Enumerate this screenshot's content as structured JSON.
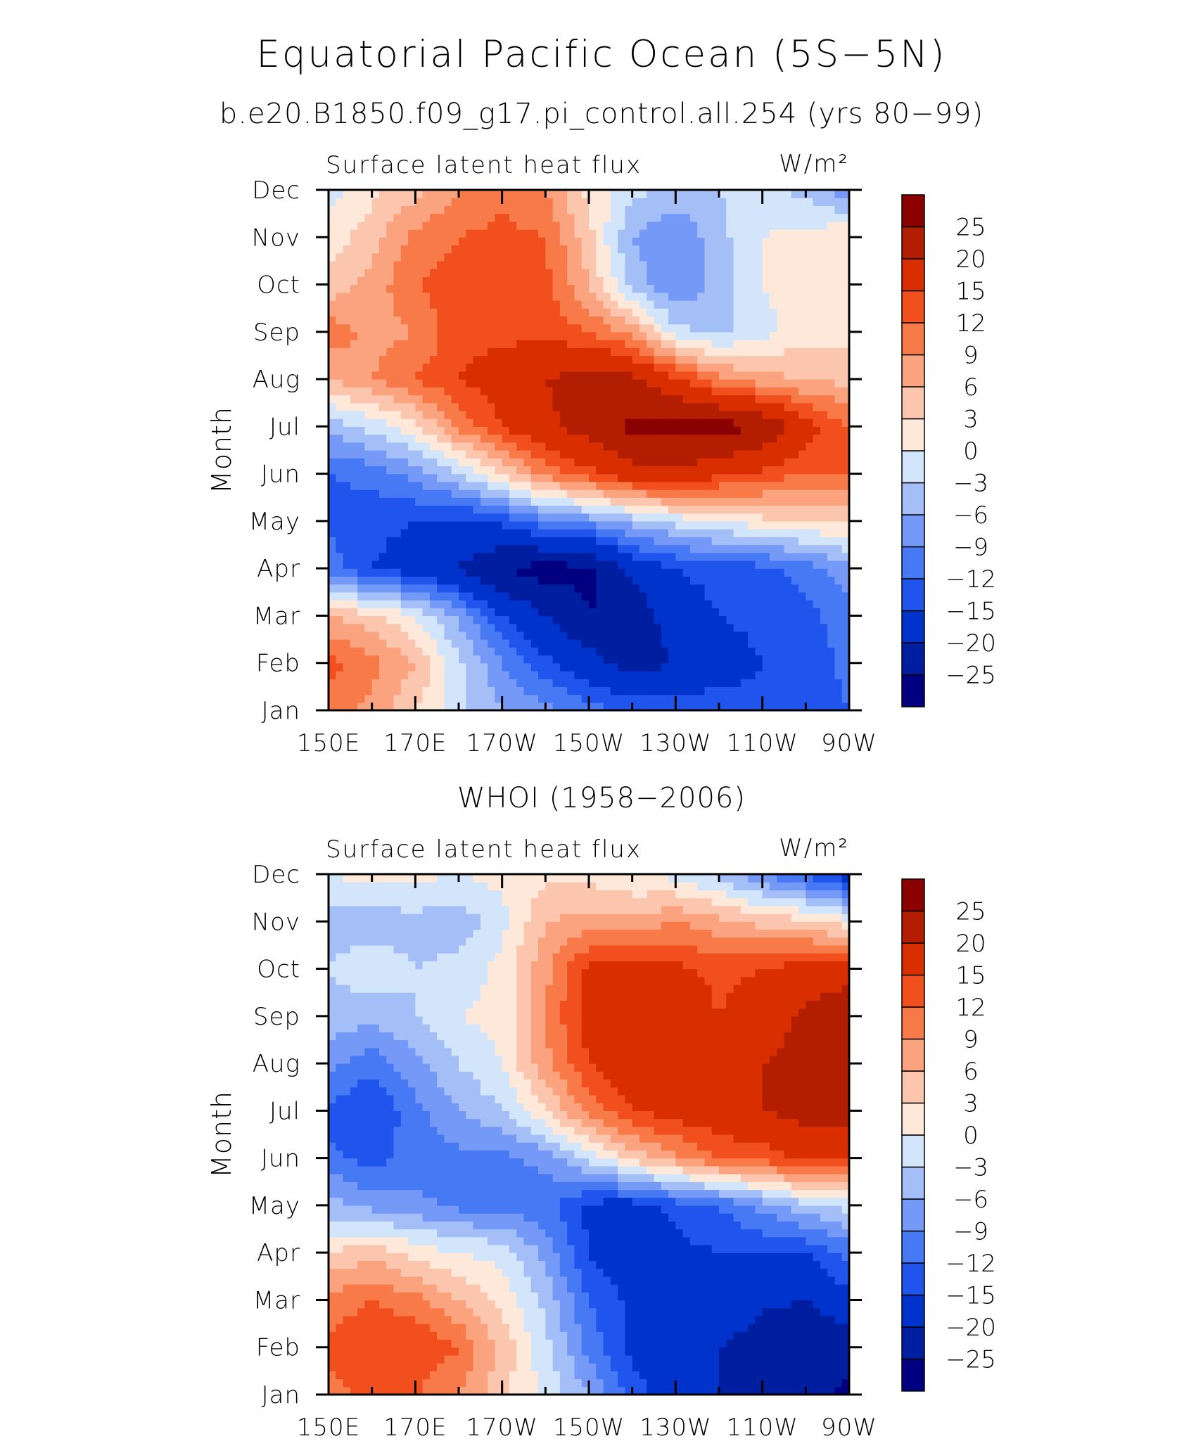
{
  "title": "Equatorial Pacific Ocean (5S−5N)",
  "levels": [
    -25,
    -20,
    -15,
    -12,
    -9,
    -6,
    -3,
    0,
    3,
    6,
    9,
    12,
    15,
    20,
    25
  ],
  "colorbar_colors": [
    "#000080",
    "#001ea0",
    "#0033cc",
    "#1f55ec",
    "#4779f5",
    "#7499f7",
    "#a4bff8",
    "#d3e5fb",
    "#fde8d9",
    "#fcc6ae",
    "#fba27e",
    "#f97a49",
    "#f24f1f",
    "#d92e00",
    "#b41e00",
    "#8b0000"
  ],
  "chart_data": [
    {
      "type": "heatmap",
      "subtitle": "b.e20.B1850.f09_g17.pi_control.all.254 (yrs 80−99)",
      "left_label": "Surface latent heat flux",
      "units": "W/m²",
      "xlabel": "",
      "ylabel": "Month",
      "x": [
        150,
        160,
        170,
        180,
        190,
        200,
        210,
        220,
        230,
        240,
        250,
        260,
        270
      ],
      "x_ticklabels": [
        "150E",
        "170E",
        "170W",
        "150W",
        "130W",
        "110W",
        "90W"
      ],
      "y_ticklabels": [
        "Jan",
        "Feb",
        "Mar",
        "Apr",
        "May",
        "Jun",
        "Jul",
        "Aug",
        "Sep",
        "Oct",
        "Nov",
        "Dec"
      ],
      "z": [
        [
          10,
          8,
          3,
          -2,
          -6,
          -8,
          -11,
          -12,
          -13,
          -13,
          -14,
          -14,
          -12
        ],
        [
          13,
          10,
          6,
          -2,
          -9,
          -14,
          -18,
          -22,
          -20,
          -17,
          -15,
          -14,
          -11
        ],
        [
          6,
          4,
          0,
          -7,
          -15,
          -20,
          -25,
          -24,
          -17,
          -15,
          -14,
          -13,
          -10
        ],
        [
          -10,
          -15,
          -17,
          -20,
          -25,
          -27,
          -26,
          -18,
          -15,
          -14,
          -13,
          -11,
          -7
        ],
        [
          -13,
          -14,
          -15,
          -16,
          -14,
          -10,
          -8,
          -5,
          -2,
          0,
          2,
          3,
          4
        ],
        [
          -12,
          -11,
          -8,
          -3,
          3,
          10,
          14,
          18,
          19,
          16,
          14,
          12,
          12
        ],
        [
          -5,
          -2,
          2,
          10,
          15,
          19,
          22,
          26,
          27,
          27,
          25,
          17,
          12
        ],
        [
          6,
          9,
          12,
          15,
          17,
          20,
          22,
          21,
          16,
          10,
          7,
          6,
          5
        ],
        [
          11,
          8,
          9,
          14,
          14,
          14,
          12,
          8,
          -2,
          -4,
          -1,
          2,
          2
        ],
        [
          4,
          7,
          12,
          14,
          14,
          13,
          6,
          -4,
          -9,
          -5,
          0,
          1,
          2
        ],
        [
          1,
          5,
          10,
          12,
          13,
          12,
          4,
          -6,
          -9,
          -4,
          0,
          1,
          3
        ],
        [
          -1,
          2,
          5,
          9,
          11,
          9,
          2,
          -2,
          -4,
          -3,
          -2,
          -4,
          -8
        ]
      ]
    },
    {
      "type": "heatmap",
      "subtitle": "WHOI (1958−2006)",
      "left_label": "Surface latent heat flux",
      "units": "W/m²",
      "xlabel": "",
      "ylabel": "Month",
      "x": [
        150,
        160,
        170,
        180,
        190,
        200,
        210,
        220,
        230,
        240,
        250,
        260,
        270
      ],
      "x_ticklabels": [
        "150E",
        "170E",
        "170W",
        "150W",
        "130W",
        "110W",
        "90W"
      ],
      "y_ticklabels": [
        "Jan",
        "Feb",
        "Mar",
        "Apr",
        "May",
        "Jun",
        "Jul",
        "Aug",
        "Sep",
        "Oct",
        "Nov",
        "Dec"
      ],
      "z": [
        [
          11,
          13,
          12,
          9,
          4,
          -1,
          -6,
          -13,
          -18,
          -20,
          -21,
          -23,
          -26
        ],
        [
          13,
          15,
          15,
          12,
          5,
          -2,
          -10,
          -16,
          -18,
          -20,
          -23,
          -25,
          -23
        ],
        [
          10,
          12,
          10,
          6,
          2,
          -4,
          -12,
          -16,
          -15,
          -15,
          -19,
          -20,
          -16
        ],
        [
          3,
          5,
          2,
          0,
          -1,
          -7,
          -15,
          -18,
          -16,
          -15,
          -15,
          -15,
          -11
        ],
        [
          -5,
          -7,
          -8,
          -10,
          -10,
          -11,
          -16,
          -17,
          -14,
          -12,
          -8,
          -4,
          -2
        ],
        [
          -11,
          -13,
          -11,
          -10,
          -10,
          -8,
          -2,
          4,
          8,
          12,
          13,
          16,
          16
        ],
        [
          -13,
          -15,
          -10,
          -6,
          -3,
          3,
          10,
          15,
          17,
          18,
          20,
          22,
          22
        ],
        [
          -8,
          -11,
          -7,
          -3,
          0,
          8,
          15,
          19,
          19,
          16,
          20,
          21,
          24
        ],
        [
          -4,
          -5,
          -3,
          0,
          1,
          9,
          17,
          20,
          18,
          15,
          18,
          21,
          25
        ],
        [
          -3,
          -1,
          -3,
          -2,
          1,
          8,
          16,
          17,
          16,
          14,
          15,
          17,
          17
        ],
        [
          -4,
          -5,
          -4,
          -5,
          -1,
          6,
          7,
          7,
          9,
          7,
          5,
          4,
          1
        ],
        [
          0,
          1,
          1,
          0,
          1,
          2,
          2,
          0,
          -1,
          -4,
          -9,
          -13,
          -17
        ]
      ]
    }
  ]
}
